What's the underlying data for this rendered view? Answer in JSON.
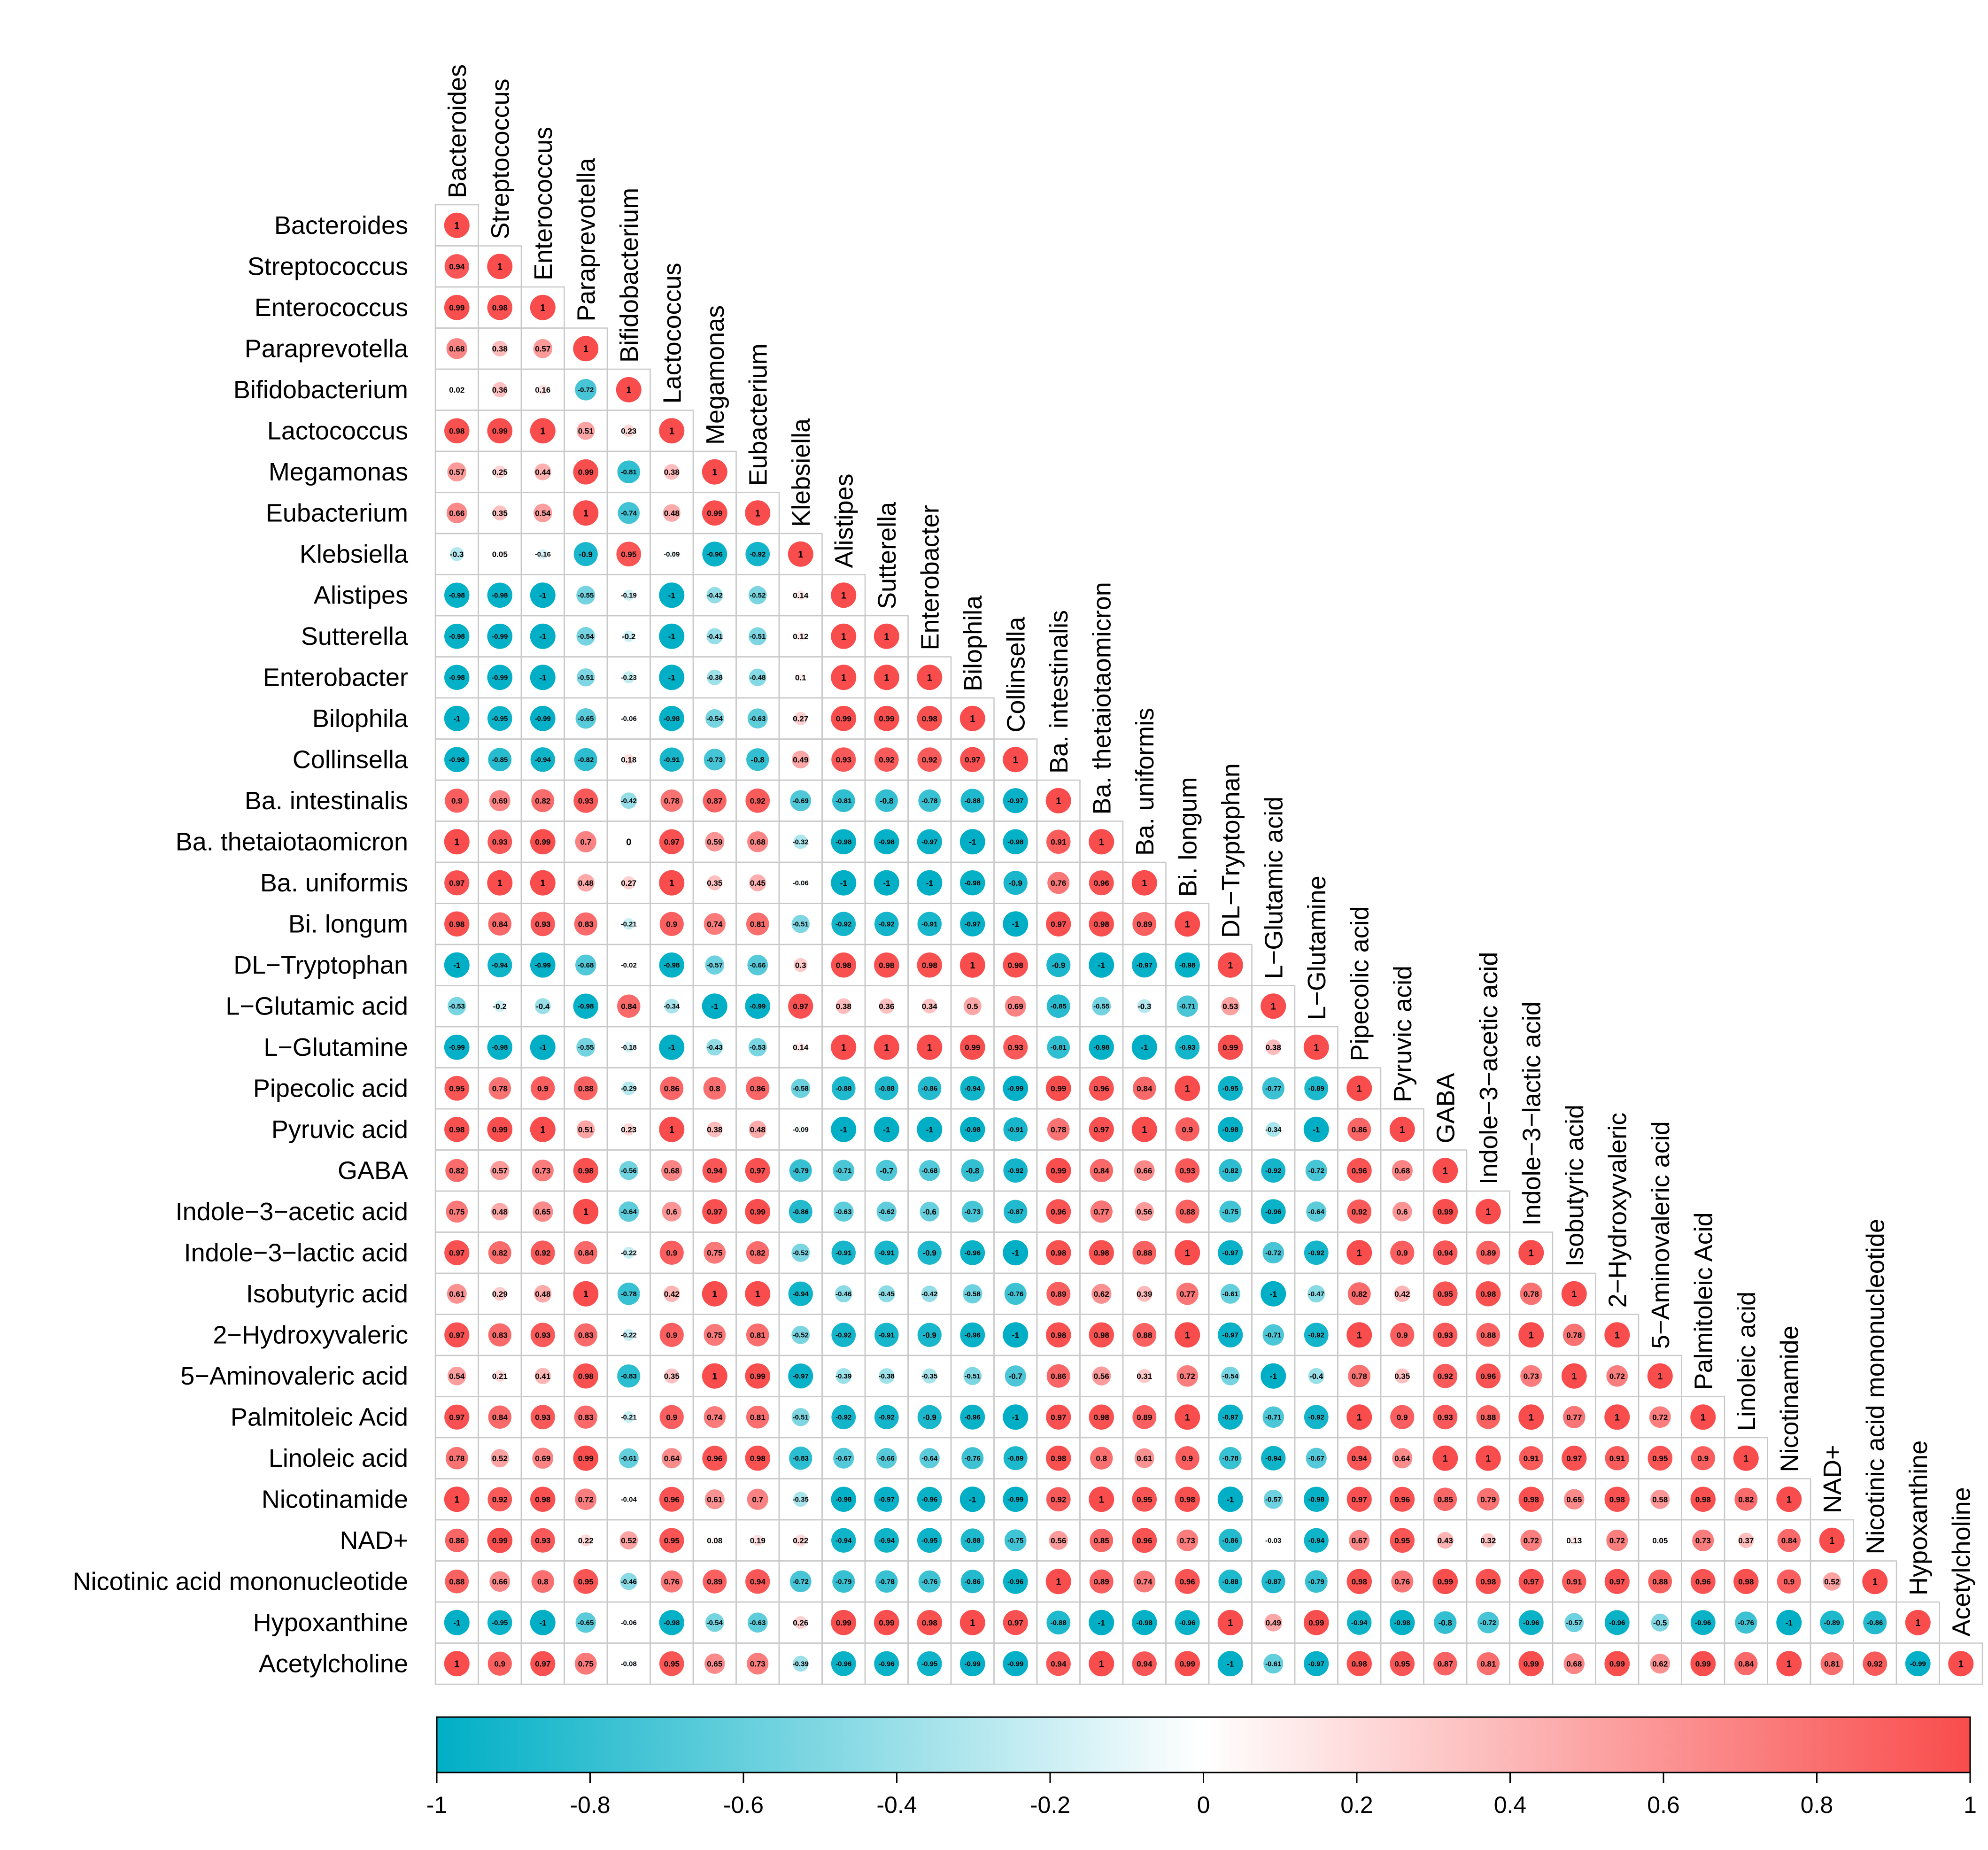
{
  "chart_data": {
    "type": "heatmap",
    "subtype": "lower-triangle correlation matrix (circle glyphs)",
    "labels": [
      "Bacteroides",
      "Streptococcus",
      "Enterococcus",
      "Paraprevotella",
      "Bifidobacterium",
      "Lactococcus",
      "Megamonas",
      "Eubacterium",
      "Klebsiella",
      "Alistipes",
      "Sutterella",
      "Enterobacter",
      "Bilophila",
      "Collinsella",
      "Ba. intestinalis",
      "Ba. thetaiotaomicron",
      "Ba. uniformis",
      "Bi. longum",
      "DL−Tryptophan",
      "L−Glutamic acid",
      "L−Glutamine",
      "Pipecolic acid",
      "Pyruvic acid",
      "GABA",
      "Indole−3−acetic acid",
      "Indole−3−lactic acid",
      "Isobutyric acid",
      "2−Hydroxyvaleric",
      "5−Aminovaleric acid",
      "Palmitoleic Acid",
      "Linoleic acid",
      "Nicotinamide",
      "NAD+",
      "Nicotinic acid mononucleotide",
      "Hypoxanthine",
      "Acetylcholine"
    ],
    "row_labels": [
      "Bacteroides",
      "Streptococcus",
      "Enterococcus",
      "Paraprevotella",
      "Bifidobacterium",
      "Lactococcus",
      "Megamonas",
      "Eubacterium",
      "Klebsiella",
      "Alistipes",
      "Sutterella",
      "Enterobacter",
      "Bilophila",
      "Collinsella",
      "Ba. intestinalis",
      "Ba. thetaiotaomicron",
      "Ba. uniformis",
      "Bi. longum",
      "DL−Tryptophan",
      "L−Glutamic acid",
      "L−Glutamine",
      "Pipecolic acid",
      "Pyruvic acid",
      "GABA",
      "Indole−3−acetic acid",
      "Indole−3−lactic acid",
      "Isobutyric acid",
      "2−Hydroxyvaleric",
      "5−Aminovaleric acid",
      "Palmitoleic Acid",
      "Linoleic acid",
      "Nicotinamide",
      "NAD+",
      "Nicotinic acid mononucleotide",
      "Hypoxanthine",
      "Acetylcholine"
    ],
    "values": [
      [
        1
      ],
      [
        0.94,
        1
      ],
      [
        0.99,
        0.98,
        1
      ],
      [
        0.68,
        0.38,
        0.57,
        1
      ],
      [
        0.02,
        0.36,
        0.16,
        -0.72,
        1
      ],
      [
        0.98,
        0.99,
        1,
        0.51,
        0.23,
        1
      ],
      [
        0.57,
        0.25,
        0.44,
        0.99,
        -0.81,
        0.38,
        1
      ],
      [
        0.66,
        0.35,
        0.54,
        1,
        -0.74,
        0.48,
        0.99,
        1
      ],
      [
        -0.3,
        0.05,
        -0.16,
        -0.9,
        0.95,
        -0.09,
        -0.96,
        -0.92,
        1
      ],
      [
        -0.98,
        -0.98,
        -1,
        -0.55,
        -0.19,
        -1,
        -0.42,
        -0.52,
        0.14,
        1
      ],
      [
        -0.98,
        -0.99,
        -1,
        -0.54,
        -0.2,
        -1,
        -0.41,
        -0.51,
        0.12,
        1,
        1
      ],
      [
        -0.98,
        -0.99,
        -1,
        -0.51,
        -0.23,
        -1,
        -0.38,
        -0.48,
        0.1,
        1,
        1,
        1
      ],
      [
        -1,
        -0.95,
        -0.99,
        -0.65,
        -0.06,
        -0.98,
        -0.54,
        -0.63,
        0.27,
        0.99,
        0.99,
        0.98,
        1
      ],
      [
        -0.98,
        -0.85,
        -0.94,
        -0.82,
        0.18,
        -0.91,
        -0.73,
        -0.8,
        0.49,
        0.93,
        0.92,
        0.92,
        0.97,
        1
      ],
      [
        0.9,
        0.69,
        0.82,
        0.93,
        -0.42,
        0.78,
        0.87,
        0.92,
        -0.69,
        -0.81,
        -0.8,
        -0.78,
        -0.88,
        -0.97,
        1
      ],
      [
        1,
        0.93,
        0.99,
        0.7,
        0,
        0.97,
        0.59,
        0.68,
        -0.32,
        -0.98,
        -0.98,
        -0.97,
        -1,
        -0.98,
        0.91,
        1
      ],
      [
        0.97,
        1,
        1,
        0.48,
        0.27,
        1,
        0.35,
        0.45,
        -0.06,
        -1,
        -1,
        -1,
        -0.98,
        -0.9,
        0.76,
        0.96,
        1
      ],
      [
        0.98,
        0.84,
        0.93,
        0.83,
        -0.21,
        0.9,
        0.74,
        0.81,
        -0.51,
        -0.92,
        -0.92,
        -0.91,
        -0.97,
        -1,
        0.97,
        0.98,
        0.89,
        1
      ],
      [
        -1,
        -0.94,
        -0.99,
        -0.68,
        -0.02,
        -0.98,
        -0.57,
        -0.66,
        0.3,
        0.98,
        0.98,
        0.98,
        1,
        0.98,
        -0.9,
        -1,
        -0.97,
        -0.98,
        1
      ],
      [
        -0.53,
        -0.2,
        -0.4,
        -0.98,
        0.84,
        -0.34,
        -1,
        -0.99,
        0.97,
        0.38,
        0.36,
        0.34,
        0.5,
        0.69,
        -0.85,
        -0.55,
        -0.3,
        -0.71,
        0.53,
        1
      ],
      [
        -0.99,
        -0.98,
        -1,
        -0.55,
        -0.18,
        -1,
        -0.43,
        -0.53,
        0.14,
        1,
        1,
        1,
        0.99,
        0.93,
        -0.81,
        -0.98,
        -1,
        -0.93,
        0.99,
        0.38,
        1
      ],
      [
        0.95,
        0.78,
        0.9,
        0.88,
        -0.29,
        0.86,
        0.8,
        0.86,
        -0.58,
        -0.88,
        -0.88,
        -0.86,
        -0.94,
        -0.99,
        0.99,
        0.96,
        0.84,
        1,
        -0.95,
        -0.77,
        -0.89,
        1
      ],
      [
        0.98,
        0.99,
        1,
        0.51,
        0.23,
        1,
        0.38,
        0.48,
        -0.09,
        -1,
        -1,
        -1,
        -0.98,
        -0.91,
        0.78,
        0.97,
        1,
        0.9,
        -0.98,
        -0.34,
        -1,
        0.86,
        1
      ],
      [
        0.82,
        0.57,
        0.73,
        0.98,
        -0.56,
        0.68,
        0.94,
        0.97,
        -0.79,
        -0.71,
        -0.7,
        -0.68,
        -0.8,
        -0.92,
        0.99,
        0.84,
        0.66,
        0.93,
        -0.82,
        -0.92,
        -0.72,
        0.96,
        0.68,
        1
      ],
      [
        0.75,
        0.48,
        0.65,
        1,
        -0.64,
        0.6,
        0.97,
        0.99,
        -0.86,
        -0.63,
        -0.62,
        -0.6,
        -0.73,
        -0.87,
        0.96,
        0.77,
        0.56,
        0.88,
        -0.75,
        -0.96,
        -0.64,
        0.92,
        0.6,
        0.99,
        1
      ],
      [
        0.97,
        0.82,
        0.92,
        0.84,
        -0.22,
        0.9,
        0.75,
        0.82,
        -0.52,
        -0.91,
        -0.91,
        -0.9,
        -0.96,
        -1,
        0.98,
        0.98,
        0.88,
        1,
        -0.97,
        -0.72,
        -0.92,
        1,
        0.9,
        0.94,
        0.89,
        1
      ],
      [
        0.61,
        0.29,
        0.48,
        1,
        -0.78,
        0.42,
        1,
        1,
        -0.94,
        -0.46,
        -0.45,
        -0.42,
        -0.58,
        -0.76,
        0.89,
        0.62,
        0.39,
        0.77,
        -0.61,
        -1,
        -0.47,
        0.82,
        0.42,
        0.95,
        0.98,
        0.78,
        1
      ],
      [
        0.97,
        0.83,
        0.93,
        0.83,
        -0.22,
        0.9,
        0.75,
        0.81,
        -0.52,
        -0.92,
        -0.91,
        -0.9,
        -0.96,
        -1,
        0.98,
        0.98,
        0.88,
        1,
        -0.97,
        -0.71,
        -0.92,
        1,
        0.9,
        0.93,
        0.88,
        1,
        0.78,
        1
      ],
      [
        0.54,
        0.21,
        0.41,
        0.98,
        -0.83,
        0.35,
        1,
        0.99,
        -0.97,
        -0.39,
        -0.38,
        -0.35,
        -0.51,
        -0.7,
        0.86,
        0.56,
        0.31,
        0.72,
        -0.54,
        -1,
        -0.4,
        0.78,
        0.35,
        0.92,
        0.96,
        0.73,
        1,
        0.72,
        1
      ],
      [
        0.97,
        0.84,
        0.93,
        0.83,
        -0.21,
        0.9,
        0.74,
        0.81,
        -0.51,
        -0.92,
        -0.92,
        -0.9,
        -0.96,
        -1,
        0.97,
        0.98,
        0.89,
        1,
        -0.97,
        -0.71,
        -0.92,
        1,
        0.9,
        0.93,
        0.88,
        1,
        0.77,
        1,
        0.72,
        1
      ],
      [
        0.78,
        0.52,
        0.69,
        0.99,
        -0.61,
        0.64,
        0.96,
        0.98,
        -0.83,
        -0.67,
        -0.66,
        -0.64,
        -0.76,
        -0.89,
        0.98,
        0.8,
        0.61,
        0.9,
        -0.78,
        -0.94,
        -0.67,
        0.94,
        0.64,
        1,
        1,
        0.91,
        0.97,
        0.91,
        0.95,
        0.9,
        1
      ],
      [
        1,
        0.92,
        0.98,
        0.72,
        -0.04,
        0.96,
        0.61,
        0.7,
        -0.35,
        -0.98,
        -0.97,
        -0.96,
        -1,
        -0.99,
        0.92,
        1,
        0.95,
        0.98,
        -1,
        -0.57,
        -0.98,
        0.97,
        0.96,
        0.85,
        0.79,
        0.98,
        0.65,
        0.98,
        0.58,
        0.98,
        0.82,
        1
      ],
      [
        0.86,
        0.99,
        0.93,
        0.22,
        0.52,
        0.95,
        0.08,
        0.19,
        0.22,
        -0.94,
        -0.94,
        -0.95,
        -0.88,
        -0.75,
        0.56,
        0.85,
        0.96,
        0.73,
        -0.86,
        -0.03,
        -0.94,
        0.67,
        0.95,
        0.43,
        0.32,
        0.72,
        0.13,
        0.72,
        0.05,
        0.73,
        0.37,
        0.84,
        1
      ],
      [
        0.88,
        0.66,
        0.8,
        0.95,
        -0.46,
        0.76,
        0.89,
        0.94,
        -0.72,
        -0.79,
        -0.78,
        -0.76,
        -0.86,
        -0.96,
        1,
        0.89,
        0.74,
        0.96,
        -0.88,
        -0.87,
        -0.79,
        0.98,
        0.76,
        0.99,
        0.98,
        0.97,
        0.91,
        0.97,
        0.88,
        0.96,
        0.98,
        0.9,
        0.52,
        1
      ],
      [
        -1,
        -0.95,
        -1,
        -0.65,
        -0.06,
        -0.98,
        -0.54,
        -0.63,
        0.26,
        0.99,
        0.99,
        0.98,
        1,
        0.97,
        -0.88,
        -1,
        -0.98,
        -0.96,
        1,
        0.49,
        0.99,
        -0.94,
        -0.98,
        -0.8,
        -0.72,
        -0.96,
        -0.57,
        -0.96,
        -0.5,
        -0.96,
        -0.76,
        -1,
        -0.89,
        -0.86,
        1
      ],
      [
        1,
        0.9,
        0.97,
        0.75,
        -0.08,
        0.95,
        0.65,
        0.73,
        -0.39,
        -0.96,
        -0.96,
        -0.95,
        -0.99,
        -0.99,
        0.94,
        1,
        0.94,
        0.99,
        -1,
        -0.61,
        -0.97,
        0.98,
        0.95,
        0.87,
        0.81,
        0.99,
        0.68,
        0.99,
        0.62,
        0.99,
        0.84,
        1,
        0.81,
        0.92,
        -0.99,
        1
      ]
    ],
    "value_range": [
      -1,
      1
    ],
    "colorbar": {
      "ticks": [
        "-1",
        "-0.8",
        "-0.6",
        "-0.4",
        "-0.2",
        "0",
        "0.2",
        "0.4",
        "0.6",
        "0.8",
        "1"
      ],
      "low_color": "#00AFC6",
      "mid_color": "#FFFFFF",
      "high_color": "#F94C4C"
    },
    "grid": true,
    "legend": "bottom colorbar"
  }
}
